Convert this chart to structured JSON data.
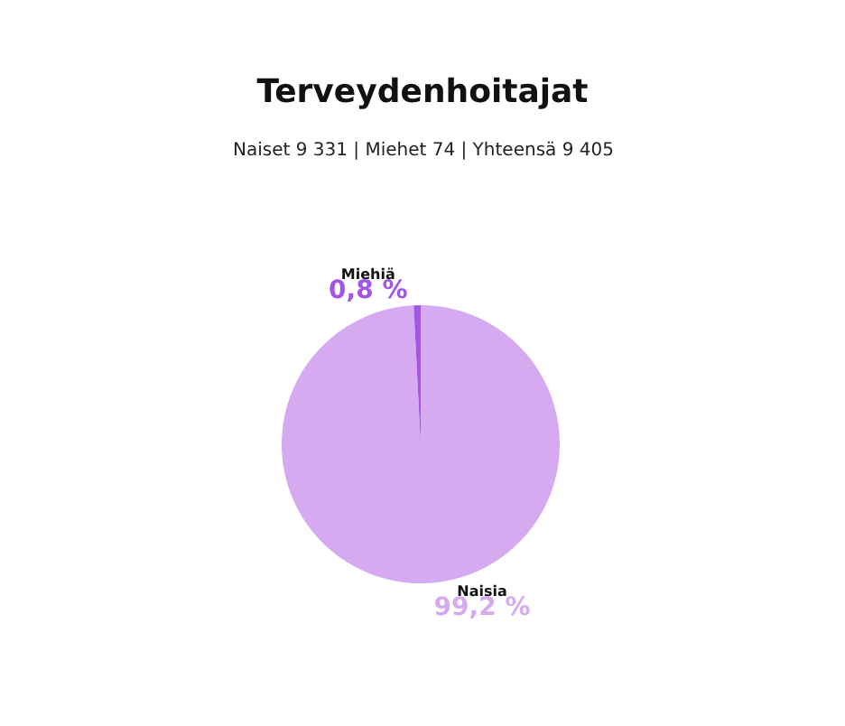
{
  "chart_data": {
    "type": "pie",
    "title": "Terveydenhoitajat",
    "subtitle": "Naiset 9 331 | Miehet 74 | Yhteensä 9 405",
    "categories": [
      "Naisia",
      "Miehiä"
    ],
    "values": [
      99.2,
      0.8
    ],
    "colors": [
      "#d6aaf0",
      "#a555e6"
    ],
    "value_labels": [
      "99,2 %",
      "0,8 %"
    ],
    "legend": false
  }
}
